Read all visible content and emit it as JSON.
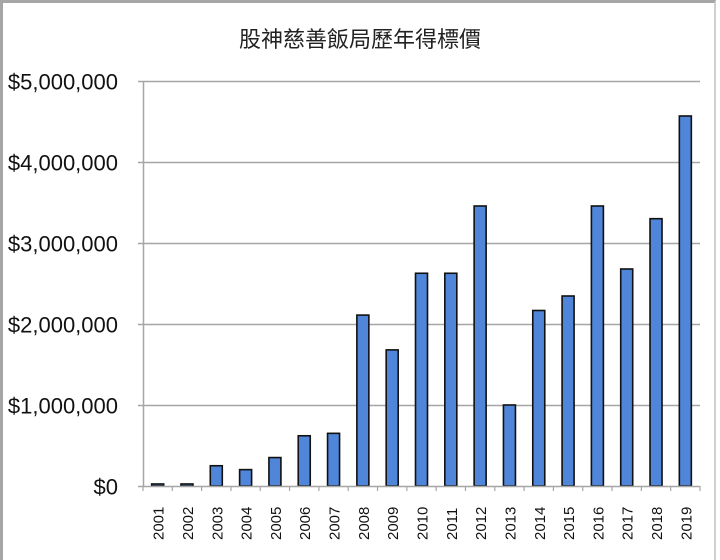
{
  "chart_data": {
    "type": "bar",
    "title": "股神慈善飯局歷年得標價",
    "xlabel": "",
    "ylabel": "",
    "categories": [
      "2001",
      "2002",
      "2003",
      "2004",
      "2005",
      "2006",
      "2007",
      "2008",
      "2009",
      "2010",
      "2011",
      "2012",
      "2013",
      "2014",
      "2015",
      "2016",
      "2017",
      "2018",
      "2019"
    ],
    "values": [
      25000,
      25000,
      250100,
      202100,
      351100,
      620100,
      650100,
      2110100,
      1680300,
      2626411,
      2626311,
      3456789,
      1000100,
      2166766,
      2345678,
      3456789,
      2679001,
      3300100,
      4567888
    ],
    "ylim": [
      0,
      5000000
    ],
    "yticks": [
      0,
      1000000,
      2000000,
      3000000,
      4000000,
      5000000
    ],
    "ytick_labels": [
      "$0",
      "$1,000,000",
      "$2,000,000",
      "$3,000,000",
      "$4,000,000",
      "$5,000,000"
    ],
    "grid": true,
    "legend": null,
    "bar_color": "#4f86d9",
    "bar_edge_color": "#111111",
    "grid_color": "#a6a6a6"
  }
}
